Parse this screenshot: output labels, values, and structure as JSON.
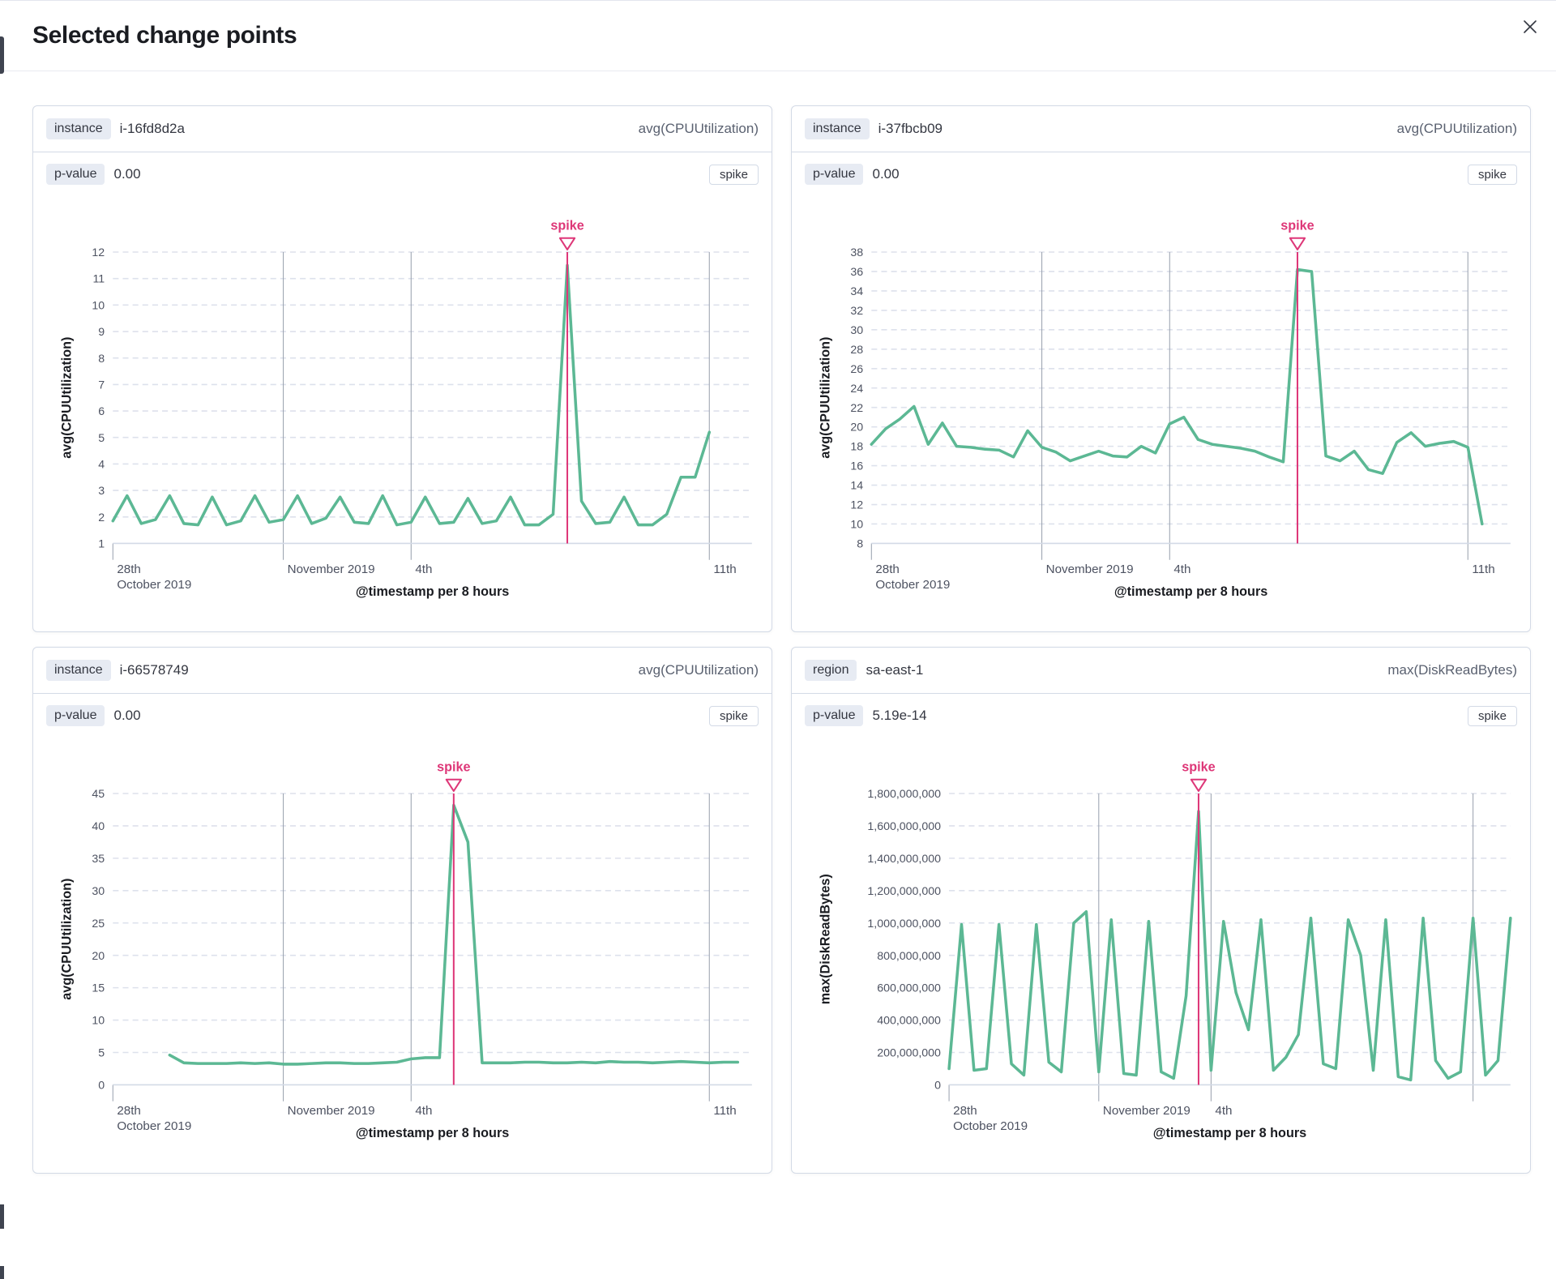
{
  "modal": {
    "title": "Selected change points"
  },
  "colors": {
    "line_green": "#5cb894",
    "annotation_pink": "#de3778",
    "grid_dash": "#dde1ec",
    "grid_vertical": "#98a0ad",
    "axis_line": "#d3dae6"
  },
  "panels": [
    {
      "key_label": "instance",
      "key_value": "i-16fd8d2a",
      "metric": "avg(CPUUtilization)",
      "p_label": "p-value",
      "p_value": "0.00",
      "badge": "spike"
    },
    {
      "key_label": "instance",
      "key_value": "i-37fbcb09",
      "metric": "avg(CPUUtilization)",
      "p_label": "p-value",
      "p_value": "0.00",
      "badge": "spike"
    },
    {
      "key_label": "instance",
      "key_value": "i-66578749",
      "metric": "avg(CPUUtilization)",
      "p_label": "p-value",
      "p_value": "0.00",
      "badge": "spike"
    },
    {
      "key_label": "region",
      "key_value": "sa-east-1",
      "metric": "max(DiskReadBytes)",
      "p_label": "p-value",
      "p_value": "5.19e-14",
      "badge": "spike"
    }
  ],
  "chart_data": [
    {
      "type": "line",
      "ylabel": "avg(CPUUtilization)",
      "xlabel": "@timestamp per 8 hours",
      "ylim": [
        1,
        12
      ],
      "yticks": [
        1,
        2,
        3,
        4,
        5,
        6,
        7,
        8,
        9,
        10,
        11,
        12
      ],
      "ytick_format": "plain",
      "x_max": 45,
      "xticks": [
        {
          "pos": 0,
          "lines": [
            "28th",
            "October 2019"
          ]
        },
        {
          "pos": 12,
          "lines": [
            "November 2019"
          ]
        },
        {
          "pos": 21,
          "lines": [
            "4th"
          ]
        },
        {
          "pos": 42,
          "lines": [
            "11th"
          ]
        }
      ],
      "annotation": {
        "label": "spike",
        "pos": 32
      },
      "series": {
        "start": 0,
        "values": [
          1.85,
          2.8,
          1.75,
          1.9,
          2.8,
          1.75,
          1.7,
          2.75,
          1.7,
          1.85,
          2.8,
          1.8,
          1.9,
          2.8,
          1.75,
          1.95,
          2.75,
          1.8,
          1.75,
          2.8,
          1.7,
          1.8,
          2.75,
          1.75,
          1.8,
          2.7,
          1.75,
          1.85,
          2.75,
          1.7,
          1.7,
          2.1,
          11.5,
          2.6,
          1.75,
          1.8,
          2.75,
          1.7,
          1.7,
          2.1,
          3.5,
          3.5,
          5.2
        ]
      }
    },
    {
      "type": "line",
      "ylabel": "avg(CPUUtilization)",
      "xlabel": "@timestamp per 8 hours",
      "ylim": [
        8,
        38
      ],
      "yticks": [
        8,
        10,
        12,
        14,
        16,
        18,
        20,
        22,
        24,
        26,
        28,
        30,
        32,
        34,
        36,
        38
      ],
      "ytick_format": "plain",
      "x_max": 45,
      "xticks": [
        {
          "pos": 0,
          "lines": [
            "28th",
            "October 2019"
          ]
        },
        {
          "pos": 12,
          "lines": [
            "November 2019"
          ]
        },
        {
          "pos": 21,
          "lines": [
            "4th"
          ]
        },
        {
          "pos": 42,
          "lines": [
            "11th"
          ]
        }
      ],
      "annotation": {
        "label": "spike",
        "pos": 30
      },
      "series": {
        "start": 0,
        "values": [
          18.2,
          19.8,
          20.8,
          22.1,
          18.2,
          20.4,
          18.0,
          17.9,
          17.7,
          17.6,
          16.9,
          19.6,
          17.9,
          17.4,
          16.5,
          17.0,
          17.5,
          17.0,
          16.9,
          18.0,
          17.3,
          20.3,
          21.0,
          18.7,
          18.2,
          18.0,
          17.8,
          17.5,
          16.9,
          16.4,
          36.2,
          36.0,
          17.0,
          16.5,
          17.5,
          15.6,
          15.2,
          18.4,
          19.4,
          18.0,
          18.3,
          18.5,
          17.9,
          10.0
        ]
      }
    },
    {
      "type": "line",
      "ylabel": "avg(CPUUtilization)",
      "xlabel": "@timestamp per 8 hours",
      "ylim": [
        0,
        45
      ],
      "yticks": [
        0,
        5,
        10,
        15,
        20,
        25,
        30,
        35,
        40,
        45
      ],
      "ytick_format": "plain",
      "x_max": 45,
      "xticks": [
        {
          "pos": 0,
          "lines": [
            "28th",
            "October 2019"
          ]
        },
        {
          "pos": 12,
          "lines": [
            "November 2019"
          ]
        },
        {
          "pos": 21,
          "lines": [
            "4th"
          ]
        },
        {
          "pos": 42,
          "lines": [
            "11th"
          ]
        }
      ],
      "annotation": {
        "label": "spike",
        "pos": 24
      },
      "series": {
        "start": 4,
        "values": [
          4.6,
          3.4,
          3.3,
          3.3,
          3.3,
          3.4,
          3.3,
          3.4,
          3.2,
          3.2,
          3.3,
          3.4,
          3.4,
          3.3,
          3.3,
          3.4,
          3.5,
          4.0,
          4.2,
          4.2,
          43.2,
          37.5,
          3.4,
          3.4,
          3.4,
          3.5,
          3.5,
          3.4,
          3.4,
          3.5,
          3.4,
          3.6,
          3.5,
          3.5,
          3.4,
          3.5,
          3.6,
          3.5,
          3.4,
          3.5,
          3.5
        ]
      }
    },
    {
      "type": "line",
      "ylabel": "max(DiskReadBytes)",
      "xlabel": "@timestamp per 8 hours",
      "ylim": [
        0,
        1800000000
      ],
      "yticks": [
        0,
        200000000,
        400000000,
        600000000,
        800000000,
        1000000000,
        1200000000,
        1400000000,
        1600000000,
        1800000000
      ],
      "ytick_format": "comma",
      "x_max": 45,
      "xticks": [
        {
          "pos": 0,
          "lines": [
            "28th",
            "October 2019"
          ]
        },
        {
          "pos": 12,
          "lines": [
            "November 2019"
          ]
        },
        {
          "pos": 21,
          "lines": [
            "4th"
          ]
        },
        {
          "pos": 42,
          "lines": []
        }
      ],
      "annotation": {
        "label": "spike",
        "pos": 20
      },
      "series": {
        "start": 0,
        "values": [
          100000000,
          990000000,
          90000000,
          100000000,
          990000000,
          130000000,
          60000000,
          990000000,
          140000000,
          80000000,
          1000000000,
          1070000000,
          80000000,
          1020000000,
          70000000,
          60000000,
          1010000000,
          80000000,
          40000000,
          550000000,
          1690000000,
          90000000,
          1010000000,
          570000000,
          340000000,
          1020000000,
          90000000,
          170000000,
          310000000,
          1030000000,
          130000000,
          100000000,
          1020000000,
          800000000,
          90000000,
          1020000000,
          50000000,
          30000000,
          1030000000,
          150000000,
          40000000,
          80000000,
          1030000000,
          60000000,
          150000000,
          1030000000
        ]
      }
    }
  ]
}
